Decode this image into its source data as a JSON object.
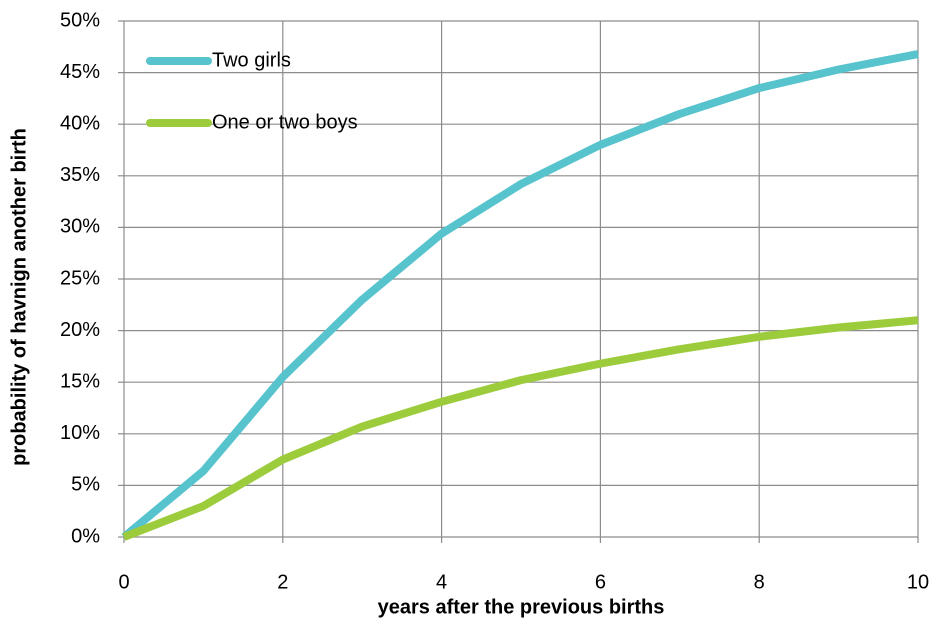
{
  "chart_data": {
    "type": "line",
    "x_label": "years after the previous births",
    "y_label": "probability of havnign another birth",
    "x": [
      0,
      1,
      2,
      3,
      4,
      5,
      6,
      7,
      8,
      9,
      10
    ],
    "series": [
      {
        "name": "Two girls",
        "color": "#56c3cd",
        "values": [
          0,
          6.4,
          15.5,
          23,
          29.4,
          34.2,
          38,
          41,
          43.5,
          45.3,
          46.8
        ]
      },
      {
        "name": "One or two boys",
        "color": "#9ccc3c",
        "values": [
          0,
          3,
          7.5,
          10.7,
          13.1,
          15.2,
          16.8,
          18.2,
          19.4,
          20.3,
          21
        ]
      }
    ],
    "xlim": [
      0,
      10
    ],
    "xticks": [
      0,
      2,
      4,
      6,
      8,
      10
    ],
    "ylim": [
      0,
      50
    ],
    "yticks": [
      {
        "value": 0,
        "label": "0%"
      },
      {
        "value": 5,
        "label": "5%"
      },
      {
        "value": 10,
        "label": "10%"
      },
      {
        "value": 15,
        "label": "15%"
      },
      {
        "value": 20,
        "label": "20%"
      },
      {
        "value": 25,
        "label": "25%"
      },
      {
        "value": 30,
        "label": "30%"
      },
      {
        "value": 35,
        "label": "35%"
      },
      {
        "value": 40,
        "label": "40%"
      },
      {
        "value": 45,
        "label": "45%"
      },
      {
        "value": 50,
        "label": "50%"
      }
    ],
    "grid": true,
    "legend": "upper left"
  }
}
